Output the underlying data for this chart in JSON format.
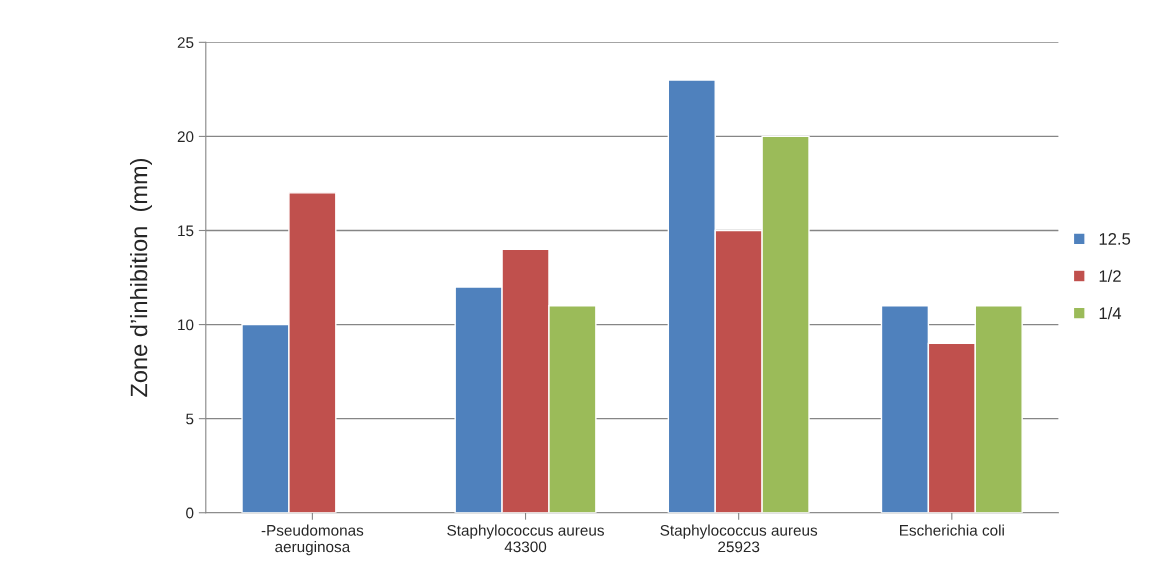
{
  "chart_data": {
    "type": "bar",
    "ylabel": "Zone d’inhibition  (mm)",
    "categories": [
      "-Pseudomonas\naeruginosa",
      "Staphylococcus aureus\n43300",
      "Staphylococcus aureus\n25923",
      "Escherichia coli"
    ],
    "series": [
      {
        "name": "12.5",
        "color": "#4f81bd",
        "values": [
          10,
          12,
          23,
          11
        ]
      },
      {
        "name": "1/2",
        "color": "#c0504d",
        "values": [
          17,
          14,
          15,
          9
        ]
      },
      {
        "name": "1/4",
        "color": "#9bbb59",
        "values": [
          null,
          11,
          20,
          11
        ]
      }
    ],
    "ylim": [
      0,
      25
    ],
    "yticks": [
      0,
      5,
      10,
      15,
      20,
      25
    ],
    "grid": "y",
    "legend": "right"
  }
}
